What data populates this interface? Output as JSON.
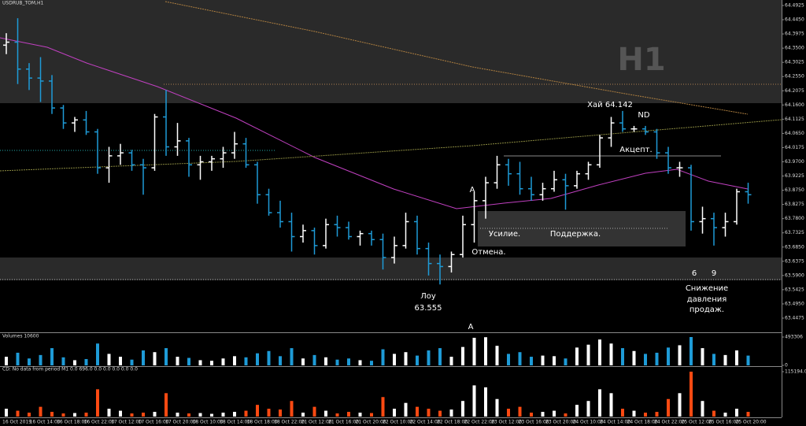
{
  "chart_data": [
    {
      "type": "ohlc",
      "title": "USDRUB_TOM,H1",
      "watermark": "H1",
      "up_color": "#ffffff",
      "down_color": "#1e9bd7",
      "ylim": [
        63.4475,
        64.4925
      ],
      "yticks": [
        64.4925,
        {
          "value": 64.445,
          "label": "64.4450"
        },
        64.3975,
        {
          "value": 64.35,
          "label": "64.3500"
        },
        64.3025,
        {
          "value": 64.255,
          "label": "64.2550"
        },
        64.2075,
        {
          "value": 64.16,
          "label": "64.1600"
        },
        64.1125,
        {
          "value": 64.065,
          "label": "64.0650"
        },
        64.0175,
        {
          "value": 63.97,
          "label": "63.9700"
        },
        63.9225,
        {
          "value": 63.875,
          "label": "63.8750"
        },
        63.8275,
        {
          "value": 63.78,
          "label": "63.7800"
        },
        63.7325,
        {
          "value": 63.685,
          "label": "63.6850"
        },
        63.6375,
        {
          "value": 63.59,
          "label": "63.5900"
        },
        63.5425,
        {
          "value": 63.495,
          "label": "63.4950"
        },
        63.4475
      ],
      "x_labels": [
        "16 Oct 2019",
        "16 Oct 14:00",
        "16 Oct 18:00",
        "16 Oct 22:00",
        "17 Oct 12:00",
        "17 Oct 16:00",
        "17 Oct 20:00",
        "18 Oct 10:00",
        "18 Oct 14:00",
        "18 Oct 18:00",
        "18 Oct 22:00",
        "21 Oct 12:00",
        "21 Oct 16:00",
        "21 Oct 20:00",
        "22 Oct 10:00",
        "22 Oct 14:00",
        "22 Oct 18:00",
        "22 Oct 22:00",
        "23 Oct 12:00",
        "23 Oct 16:00",
        "23 Oct 20:00",
        "24 Oct 10:00",
        "24 Oct 14:00",
        "24 Oct 18:00",
        "24 Oct 22:00",
        "25 Oct 12:00",
        "25 Oct 16:00",
        "25 Oct 20:00"
      ],
      "annotations": [
        "Хай 64.142",
        "ND",
        "Акцепт.",
        "A",
        "Усилие.",
        "Поддержка.",
        "Отмена.",
        "Лоу",
        "63.555",
        "6",
        "9",
        "Снижение",
        "давления",
        "продаж.",
        "A"
      ],
      "ohlc": [
        [
          64.36,
          64.4,
          64.33,
          64.37
        ],
        [
          64.37,
          64.45,
          64.23,
          64.28
        ],
        [
          64.28,
          64.3,
          64.21,
          64.25
        ],
        [
          64.25,
          64.32,
          64.17,
          64.24
        ],
        [
          64.24,
          64.26,
          64.13,
          64.15
        ],
        [
          64.15,
          64.16,
          64.08,
          64.1
        ],
        [
          64.1,
          64.12,
          64.07,
          64.11
        ],
        [
          64.11,
          64.14,
          64.06,
          64.07
        ],
        [
          64.07,
          64.08,
          63.93,
          63.95
        ],
        [
          63.95,
          64.02,
          63.9,
          63.99
        ],
        [
          63.99,
          64.03,
          63.96,
          64.0
        ],
        [
          64.0,
          64.01,
          63.94,
          63.96
        ],
        [
          63.96,
          63.98,
          63.86,
          63.95
        ],
        [
          63.95,
          64.13,
          63.94,
          64.12
        ],
        [
          64.12,
          64.21,
          63.99,
          64.02
        ],
        [
          64.02,
          64.1,
          63.99,
          64.04
        ],
        [
          64.04,
          64.05,
          63.92,
          63.96
        ],
        [
          63.96,
          63.99,
          63.91,
          63.97
        ],
        [
          63.97,
          63.99,
          63.94,
          63.98
        ],
        [
          63.98,
          64.02,
          63.95,
          64.0
        ],
        [
          64.0,
          64.07,
          63.98,
          64.03
        ],
        [
          64.03,
          64.05,
          63.95,
          63.96
        ],
        [
          63.96,
          63.97,
          63.83,
          63.86
        ],
        [
          63.86,
          63.88,
          63.79,
          63.8
        ],
        [
          63.8,
          63.84,
          63.75,
          63.77
        ],
        [
          63.77,
          63.8,
          63.67,
          63.72
        ],
        [
          63.72,
          63.76,
          63.7,
          63.74
        ],
        [
          63.74,
          63.75,
          63.66,
          63.69
        ],
        [
          63.69,
          63.78,
          63.68,
          63.76
        ],
        [
          63.76,
          63.79,
          63.72,
          63.75
        ],
        [
          63.75,
          63.77,
          63.71,
          63.72
        ],
        [
          63.72,
          63.74,
          63.69,
          63.73
        ],
        [
          63.73,
          63.74,
          63.69,
          63.71
        ],
        [
          63.71,
          63.73,
          63.61,
          63.65
        ],
        [
          63.65,
          63.72,
          63.63,
          63.69
        ],
        [
          63.69,
          63.8,
          63.68,
          63.77
        ],
        [
          63.77,
          63.79,
          63.66,
          63.68
        ],
        [
          63.68,
          63.7,
          63.59,
          63.63
        ],
        [
          63.63,
          63.66,
          63.56,
          63.62
        ],
        [
          63.62,
          63.67,
          63.6,
          63.66
        ],
        [
          63.66,
          63.79,
          63.65,
          63.76
        ],
        [
          63.76,
          63.87,
          63.7,
          63.84
        ],
        [
          63.84,
          63.92,
          63.78,
          63.9
        ],
        [
          63.9,
          63.99,
          63.88,
          63.96
        ],
        [
          63.96,
          63.98,
          63.89,
          63.93
        ],
        [
          63.93,
          63.97,
          63.86,
          63.88
        ],
        [
          63.88,
          63.92,
          63.84,
          63.86
        ],
        [
          63.86,
          63.9,
          63.84,
          63.88
        ],
        [
          63.88,
          63.94,
          63.87,
          63.91
        ],
        [
          63.91,
          63.93,
          63.81,
          63.89
        ],
        [
          63.89,
          63.94,
          63.88,
          63.93
        ],
        [
          63.93,
          63.97,
          63.91,
          63.96
        ],
        [
          63.96,
          64.06,
          63.95,
          64.05
        ],
        [
          64.05,
          64.12,
          64.02,
          64.1
        ],
        [
          64.1,
          64.14,
          64.07,
          64.08
        ],
        [
          64.08,
          64.09,
          64.07,
          64.08
        ],
        [
          64.08,
          64.09,
          64.06,
          64.07
        ],
        [
          64.07,
          64.08,
          63.98,
          64.0
        ],
        [
          64.0,
          64.02,
          63.93,
          63.95
        ],
        [
          63.95,
          63.97,
          63.92,
          63.95
        ],
        [
          63.95,
          63.96,
          63.74,
          63.77
        ],
        [
          63.77,
          63.82,
          63.73,
          63.78
        ],
        [
          63.78,
          63.8,
          63.69,
          63.75
        ],
        [
          63.75,
          63.8,
          63.72,
          63.77
        ],
        [
          63.77,
          63.88,
          63.76,
          63.87
        ],
        [
          63.87,
          63.9,
          63.83,
          63.86
        ]
      ]
    },
    {
      "type": "bar",
      "title": "Volumes 10600",
      "ylim": [
        0,
        493306
      ],
      "yticks": [
        493306,
        0
      ],
      "values": [
        150000,
        220000,
        120000,
        180000,
        300000,
        140000,
        90000,
        110000,
        380000,
        200000,
        150000,
        100000,
        260000,
        230000,
        300000,
        150000,
        130000,
        90000,
        80000,
        120000,
        160000,
        140000,
        210000,
        250000,
        160000,
        300000,
        120000,
        180000,
        140000,
        100000,
        120000,
        90000,
        80000,
        280000,
        200000,
        230000,
        170000,
        260000,
        300000,
        150000,
        320000,
        480000,
        490000,
        340000,
        200000,
        230000,
        150000,
        170000,
        160000,
        120000,
        310000,
        360000,
        450000,
        380000,
        300000,
        250000,
        200000,
        220000,
        310000,
        350000,
        493306,
        300000,
        200000,
        180000,
        260000,
        170000
      ]
    },
    {
      "type": "bar",
      "title": "CD: No data from period M1  0.0 696.0 0.0 0.0 0.0 0.0 0.0",
      "up_color": "#ffffff",
      "down_color": "#ff4a12",
      "ylim": [
        0,
        115194
      ],
      "yticks": [
        {
          "value": 115194,
          "label": "115194.0"
        }
      ],
      "values": [
        20000,
        15000,
        10000,
        25000,
        12000,
        8000,
        9000,
        10000,
        70000,
        20000,
        15000,
        8000,
        10000,
        12000,
        60000,
        10000,
        8000,
        9000,
        7000,
        10000,
        12000,
        15000,
        30000,
        20000,
        18000,
        40000,
        10000,
        25000,
        15000,
        8000,
        12000,
        10000,
        9000,
        50000,
        20000,
        35000,
        25000,
        20000,
        15000,
        18000,
        40000,
        80000,
        75000,
        45000,
        20000,
        25000,
        10000,
        12000,
        15000,
        8000,
        30000,
        40000,
        70000,
        60000,
        20000,
        15000,
        10000,
        12000,
        45000,
        60000,
        115194,
        40000,
        15000,
        10000,
        20000,
        12000
      ]
    }
  ]
}
